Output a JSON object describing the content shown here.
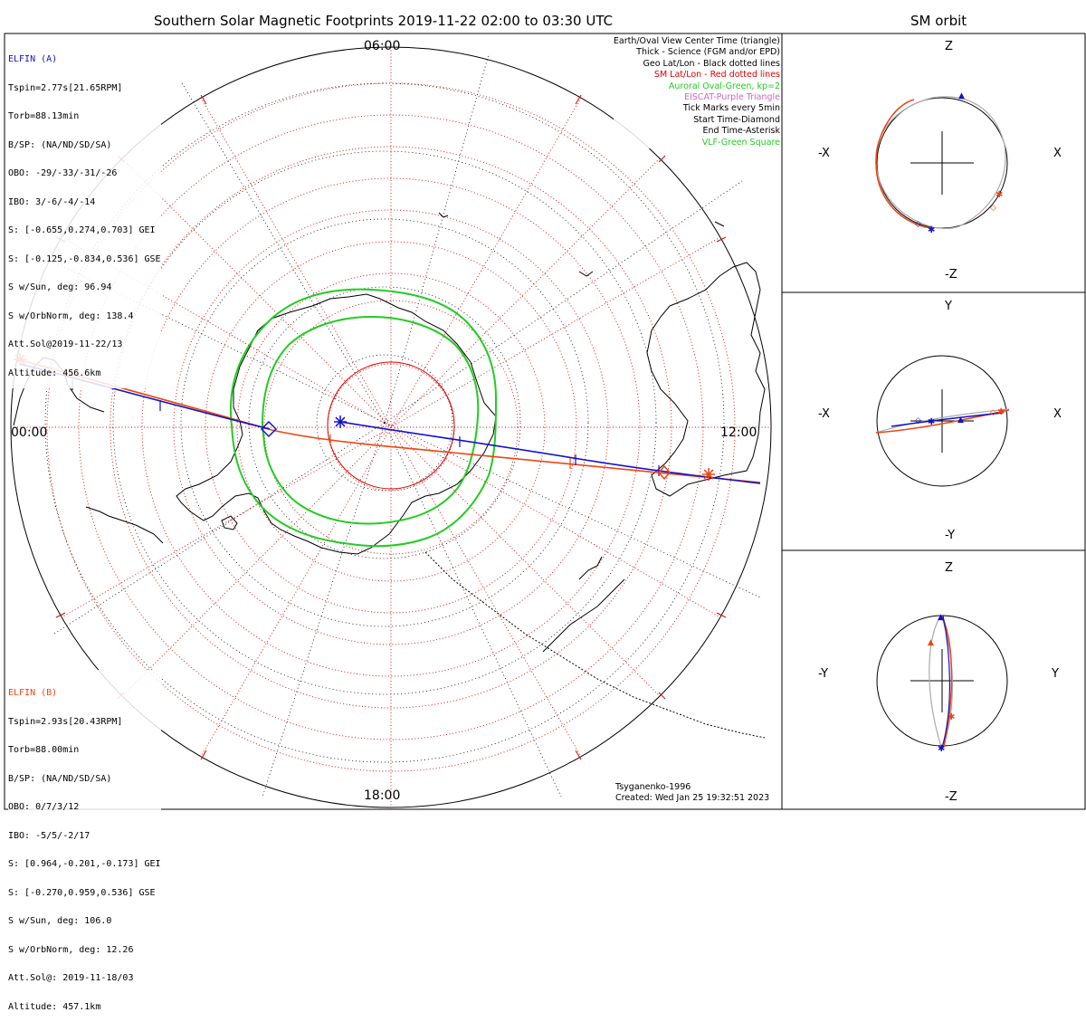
{
  "title": "Southern Solar Magnetic Footprints 2019-11-22 02:00 to 03:30 UTC",
  "sm_orbit_title": "SM orbit",
  "mlt_labels": {
    "top": "06:00",
    "left": "00:00",
    "right": "12:00",
    "bottom": "18:00"
  },
  "elfin_a": {
    "name": "ELFIN (A)",
    "color": "#1111cc",
    "lines": [
      "Tspin=2.77s[21.65RPM]",
      "Torb=88.13min",
      "B/SP: (NA/ND/SD/SA)",
      "OBO: -29/-33/-31/-26",
      "IBO: 3/-6/-4/-14",
      "S: [-0.655,0.274,0.703] GEI",
      "S: [-0.125,-0.834,0.536] GSE",
      "S w/Sun, deg: 96.94",
      "S w/OrbNorm, deg: 138.4",
      "Att.Sol@2019-11-22/13",
      "Altitude: 456.6km"
    ]
  },
  "elfin_b": {
    "name": "ELFIN (B)",
    "color": "#ee4411",
    "lines": [
      "Tspin=2.93s[20.43RPM]",
      "Torb=88.00min",
      "B/SP: (NA/ND/SD/SA)",
      "OBO: 0/7/3/12",
      "IBO: -5/5/-2/17",
      "S: [0.964,-0.201,-0.173] GEI",
      "S: [-0.270,0.959,0.536] GSE",
      "S w/Sun, deg: 106.0",
      "S w/OrbNorm, deg: 12.26",
      "Att.Sol@: 2019-11-18/03",
      "Altitude: 457.1km"
    ]
  },
  "legend": [
    {
      "text": "Earth/Oval View Center Time (triangle)",
      "color": "#000000"
    },
    {
      "text": "Thick - Science (FGM and/or EPD)",
      "color": "#000000"
    },
    {
      "text": "Geo Lat/Lon - Black dotted lines",
      "color": "#000000"
    },
    {
      "text": "SM Lat/Lon - Red dotted lines",
      "color": "#dd0000"
    },
    {
      "text": "Auroral Oval-Green, kp=2",
      "color": "#22cc22"
    },
    {
      "text": "EISCAT-Purple Triangle",
      "color": "#cc66cc"
    },
    {
      "text": "Tick Marks every 5min",
      "color": "#000000"
    },
    {
      "text": "Start Time-Diamond",
      "color": "#000000"
    },
    {
      "text": "End Time-Asterisk",
      "color": "#000000"
    },
    {
      "text": "VLF-Green Square",
      "color": "#22cc22"
    }
  ],
  "footer": {
    "model": "Tsyganenko-1996",
    "created": "Created: Wed Jan 25 19:32:51 2023"
  },
  "panels": {
    "xz": {
      "top": "Z",
      "bottom": "-Z",
      "left": "-X",
      "right": "X"
    },
    "xy": {
      "top": "Y",
      "bottom": "-Y",
      "left": "-X",
      "right": "X"
    },
    "yz": {
      "top": "Z",
      "bottom": "-Z",
      "left": "-Y",
      "right": "Y"
    }
  },
  "colors": {
    "sc_a": "#1111cc",
    "sc_b": "#ee4411",
    "oval": "#22cc22",
    "grid_sm": "#dd0000",
    "orbit_gray": "#aaaaaa"
  }
}
